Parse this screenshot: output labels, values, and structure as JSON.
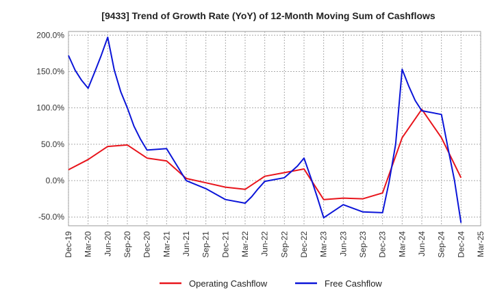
{
  "chart_data": {
    "type": "line",
    "title": "[9433]  Trend of Growth Rate (YoY) of 12-Month Moving Sum of Cashflows",
    "xlabel": "",
    "ylabel": "",
    "ylim": [
      -62,
      205
    ],
    "y_ticks": [
      200,
      150,
      100,
      50,
      0,
      -50
    ],
    "y_tick_labels": [
      "200.0%",
      "150.0%",
      "100.0%",
      "50.0%",
      "0.0%",
      "-50.0%"
    ],
    "x_range": [
      "2019-12",
      "2025-03"
    ],
    "x_tick_labels": [
      "Dec-19",
      "Mar-20",
      "Jun-20",
      "Sep-20",
      "Dec-20",
      "Mar-21",
      "Jun-21",
      "Sep-21",
      "Dec-21",
      "Mar-22",
      "Jun-22",
      "Sep-22",
      "Dec-22",
      "Mar-23",
      "Jun-23",
      "Sep-23",
      "Dec-23",
      "Mar-24",
      "Jun-24",
      "Sep-24",
      "Dec-24",
      "Mar-25"
    ],
    "grid": true,
    "legend_position": "bottom",
    "series": [
      {
        "name": "Operating Cashflow",
        "color": "#e8141b",
        "x": [
          "2019-12",
          "2020-03",
          "2020-06",
          "2020-09",
          "2020-12",
          "2021-03",
          "2021-06",
          "2021-09",
          "2021-12",
          "2022-03",
          "2022-06",
          "2022-09",
          "2022-12",
          "2023-03",
          "2023-06",
          "2023-09",
          "2023-12",
          "2024-03",
          "2024-06",
          "2024-09",
          "2024-12"
        ],
        "values": [
          15,
          29,
          47,
          49,
          31,
          27,
          3,
          -3,
          -9,
          -12,
          6,
          11,
          16,
          -26,
          -24,
          -25,
          -17,
          59,
          98,
          59,
          4
        ]
      },
      {
        "name": "Free Cashflow",
        "color": "#0a14d8",
        "x": [
          "2019-12",
          "2020-01",
          "2020-02",
          "2020-03",
          "2020-04",
          "2020-05",
          "2020-06",
          "2020-07",
          "2020-08",
          "2020-09",
          "2020-10",
          "2020-11",
          "2020-12",
          "2021-03",
          "2021-06",
          "2021-09",
          "2021-12",
          "2022-03",
          "2022-04",
          "2022-05",
          "2022-06",
          "2022-09",
          "2022-10",
          "2022-11",
          "2022-12",
          "2023-01",
          "2023-02",
          "2023-03",
          "2023-06",
          "2023-09",
          "2023-12",
          "2024-01",
          "2024-02",
          "2024-03",
          "2024-04",
          "2024-05",
          "2024-06",
          "2024-09",
          "2024-10",
          "2024-11",
          "2024-12"
        ],
        "values": [
          172,
          152,
          138,
          127,
          149,
          172,
          197,
          152,
          122,
          100,
          75,
          57,
          42,
          44,
          0,
          -11,
          -26,
          -31,
          -22,
          -11,
          -1,
          4,
          12,
          20,
          31,
          5,
          -22,
          -51,
          -33,
          -43,
          -44,
          -2,
          50,
          153,
          130,
          110,
          96,
          91,
          45,
          0,
          -58
        ]
      }
    ]
  }
}
